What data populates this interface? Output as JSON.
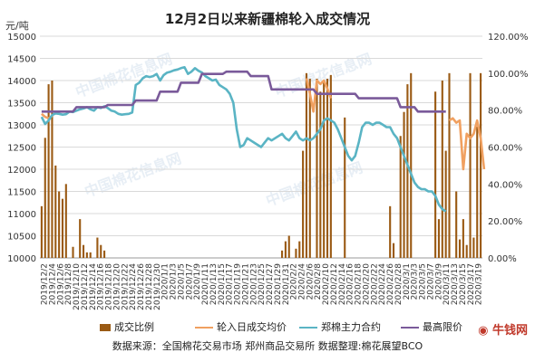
{
  "chart_data": {
    "type": "bar+line",
    "title": "12月2日以来新疆棉轮入成交情况",
    "y_left_label": "元/吨",
    "ylim_left": [
      10000,
      15000
    ],
    "ylim_right": [
      0,
      1.2
    ],
    "left_ticks": [
      "10000",
      "10500",
      "11000",
      "11500",
      "12000",
      "12500",
      "13000",
      "13500",
      "14000",
      "14500",
      "15000"
    ],
    "right_ticks": [
      "0.00%",
      "20.00%",
      "40.00%",
      "60.00%",
      "80.00%",
      "100.00%",
      "120.00%"
    ],
    "x_labels": [
      "2019/12/2",
      "2019/12/4",
      "2019/12/6",
      "2019/12/8",
      "2019/12/10",
      "2019/12/12",
      "2019/12/14",
      "2019/12/16",
      "2019/12/18",
      "2019/12/20",
      "2019/12/22",
      "2019/12/24",
      "2019/12/26",
      "2019/12/28",
      "2019/12/30",
      "2020/1/1",
      "2020/1/3",
      "2020/1/5",
      "2020/1/7",
      "2020/1/9",
      "2020/1/11",
      "2020/1/13",
      "2020/1/15",
      "2020/1/17",
      "2020/1/19",
      "2020/1/21",
      "2020/1/23",
      "2020/1/25",
      "2020/1/27",
      "2020/1/29",
      "2020/1/31",
      "2020/2/2",
      "2020/2/4",
      "2020/2/6",
      "2020/2/8",
      "2020/2/10",
      "2020/2/12",
      "2020/2/14",
      "2020/2/16",
      "2020/2/18",
      "2020/2/20",
      "2020/2/22",
      "2020/2/24",
      "2020/2/26",
      "2020/2/28",
      "2020/3/1",
      "2020/3/3",
      "2020/3/5",
      "2020/3/7",
      "2020/3/9",
      "2020/3/11",
      "2020/3/13",
      "2020/3/15",
      "2020/3/17",
      "2020/3/19"
    ],
    "x_tick_label_every": 3,
    "series": [
      {
        "name": "成交比例",
        "kind": "bar",
        "axis": "right",
        "color": "#9a5a14",
        "values": [
          0.28,
          0.65,
          0.94,
          0.96,
          0.5,
          0.36,
          0.32,
          0.4,
          0,
          0.06,
          0,
          0.21,
          0.07,
          0.03,
          0.03,
          0,
          0.11,
          0.07,
          0.04,
          0,
          0,
          0,
          0,
          0,
          0,
          0,
          0,
          0,
          0,
          0,
          0,
          0,
          0,
          0,
          0,
          0,
          0,
          0,
          0,
          0,
          0,
          0,
          0,
          0,
          0,
          0,
          0,
          0,
          0,
          0,
          0,
          0,
          0,
          0,
          0,
          0,
          0,
          0,
          0,
          0,
          0,
          0,
          0,
          0,
          0,
          0,
          0,
          0,
          0,
          0.04,
          0.09,
          0.12,
          0,
          0.05,
          0.09,
          0.58,
          1.0,
          0.97,
          0,
          0.97,
          0.9,
          0.95,
          0.97,
          0.99,
          0,
          0,
          0,
          0.76,
          0,
          0,
          0,
          0,
          0,
          0,
          0,
          0,
          0,
          0,
          0,
          0,
          0.28,
          0.08,
          0,
          0.66,
          0.79,
          0.94,
          1.0,
          0,
          0,
          0,
          0,
          0,
          0,
          0.9,
          0.21,
          0.96,
          0.58,
          1.0,
          0,
          0.36,
          0.1,
          0.21,
          0.07,
          1.0,
          0.11,
          0.71,
          1.0
        ]
      },
      {
        "name": "轮入日成交均价",
        "kind": "line",
        "axis": "left",
        "color": "#f0a060",
        "values": [
          13250,
          13180,
          13150,
          13200,
          null,
          null,
          null,
          null,
          null,
          null,
          null,
          null,
          null,
          null,
          null,
          null,
          null,
          null,
          null,
          null,
          null,
          null,
          null,
          null,
          null,
          null,
          null,
          null,
          null,
          null,
          null,
          null,
          null,
          null,
          null,
          null,
          null,
          null,
          null,
          null,
          null,
          null,
          null,
          null,
          null,
          null,
          null,
          null,
          null,
          null,
          null,
          null,
          null,
          null,
          null,
          null,
          null,
          null,
          null,
          null,
          null,
          null,
          null,
          null,
          null,
          null,
          null,
          null,
          null,
          null,
          null,
          null,
          null,
          null,
          null,
          null,
          14050,
          13700,
          13300,
          14000,
          13920,
          14000,
          13820,
          13600,
          null,
          null,
          null,
          null,
          null,
          null,
          null,
          null,
          null,
          null,
          null,
          null,
          null,
          null,
          null,
          null,
          null,
          null,
          null,
          null,
          null,
          null,
          null,
          null,
          null,
          null,
          null,
          null,
          null,
          null,
          null,
          null,
          null,
          13100,
          13150,
          13050,
          13100,
          12000,
          12800,
          12700,
          12800,
          13100,
          12700,
          12000
        ]
      },
      {
        "name": "郑棉主力合约",
        "kind": "line",
        "axis": "left",
        "color": "#5ab4c4",
        "values": [
          13180,
          13020,
          13100,
          13220,
          13260,
          13250,
          13230,
          13240,
          13300,
          13290,
          13320,
          13350,
          13370,
          13400,
          13350,
          13320,
          13400,
          13380,
          13420,
          13380,
          13320,
          13300,
          13250,
          13230,
          13240,
          13250,
          13280,
          13900,
          13950,
          14050,
          14100,
          14080,
          14100,
          14150,
          14000,
          14120,
          14180,
          14200,
          14230,
          14250,
          14280,
          14300,
          14150,
          14200,
          14280,
          14220,
          14180,
          14100,
          14050,
          14000,
          14020,
          13900,
          13850,
          13800,
          13700,
          13500,
          12900,
          12500,
          12550,
          12700,
          12650,
          12600,
          12550,
          12500,
          12600,
          12700,
          12650,
          12700,
          12750,
          12800,
          12700,
          12650,
          12750,
          12850,
          12700,
          12650,
          12700,
          12650,
          12700,
          12800,
          12900,
          13100,
          13150,
          13100,
          13050,
          12900,
          12700,
          12500,
          12300,
          12200,
          12300,
          12600,
          12950,
          13050,
          13050,
          13000,
          13050,
          13050,
          13000,
          12950,
          12950,
          12800,
          12700,
          12500,
          12300,
          12100,
          11900,
          11700,
          11600,
          11550,
          11550,
          11500,
          11500,
          11400,
          11200,
          11100,
          11050
        ]
      },
      {
        "name": "最高限价",
        "kind": "line",
        "axis": "left",
        "color": "#7a5a9a",
        "values": [
          13300,
          13300,
          13300,
          13300,
          13300,
          13300,
          13300,
          13300,
          13300,
          13300,
          13400,
          13400,
          13400,
          13400,
          13400,
          13400,
          13400,
          13400,
          13400,
          13450,
          13450,
          13450,
          13450,
          13450,
          13450,
          13450,
          13450,
          13550,
          13550,
          13550,
          13550,
          13550,
          13550,
          13550,
          13750,
          13750,
          13750,
          13750,
          13750,
          13750,
          13950,
          13950,
          13950,
          13950,
          13950,
          13950,
          14150,
          14150,
          14150,
          14150,
          14150,
          14150,
          14150,
          14200,
          14200,
          14200,
          14200,
          14200,
          14200,
          14200,
          14100,
          14100,
          14100,
          14100,
          14100,
          14100,
          13800,
          13800,
          13800,
          13800,
          13800,
          13800,
          13800,
          13800,
          13800,
          13800,
          13800,
          13800,
          13800,
          13700,
          13700,
          13700,
          13700,
          13700,
          13700,
          13700,
          13700,
          13700,
          13700,
          13700,
          13700,
          13600,
          13600,
          13600,
          13600,
          13600,
          13600,
          13600,
          13600,
          13600,
          13600,
          13600,
          13600,
          13400,
          13400,
          13400,
          13400,
          13400,
          13300,
          13300,
          13300,
          13300,
          13300,
          13300,
          13300,
          13300,
          13300
        ]
      }
    ],
    "legend": "bottom"
  },
  "source_text": "数据来源：全国棉花交易市场  郑州商品交易所  数据整理:棉花展望BCO",
  "watermark_text": "中国棉花信息网",
  "watermark_url": "www.cottonchina.org.cn",
  "brand_text": "牛钱网"
}
